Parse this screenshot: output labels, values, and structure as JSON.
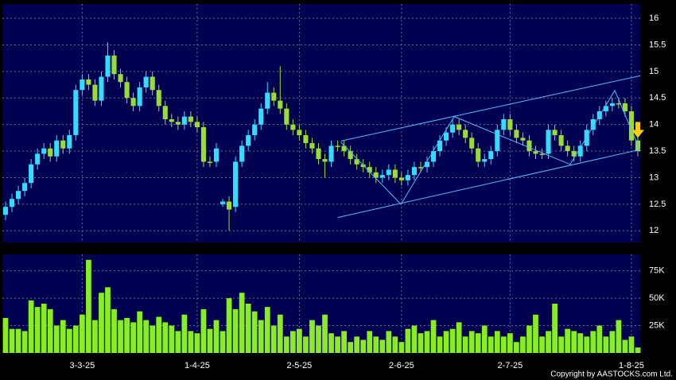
{
  "chart_data": {
    "type": "candlestick",
    "categories": [
      null,
      null,
      null,
      null,
      null,
      null,
      null,
      null,
      null,
      null,
      null,
      null,
      "3-3-25",
      null,
      null,
      null,
      null,
      null,
      null,
      null,
      null,
      null,
      null,
      null,
      null,
      null,
      null,
      null,
      null,
      null,
      "1-4-25",
      null,
      null,
      null,
      null,
      null,
      null,
      null,
      null,
      null,
      null,
      null,
      null,
      null,
      null,
      null,
      "2-5-25",
      null,
      null,
      null,
      null,
      null,
      null,
      null,
      null,
      null,
      null,
      null,
      null,
      null,
      null,
      null,
      "2-6-25",
      null,
      null,
      null,
      null,
      null,
      null,
      null,
      null,
      null,
      null,
      null,
      null,
      null,
      null,
      null,
      null,
      "2-7-25",
      null,
      null,
      null,
      null,
      null,
      null,
      null,
      null,
      null,
      null,
      null,
      null,
      null,
      null,
      null,
      null,
      null,
      null,
      "1-8-25",
      null
    ],
    "open": [
      12.3,
      12.45,
      12.6,
      12.75,
      12.9,
      13.25,
      13.45,
      13.55,
      13.4,
      13.7,
      13.55,
      13.8,
      14.65,
      14.85,
      14.75,
      14.45,
      14.9,
      15.3,
      14.95,
      14.8,
      14.5,
      14.35,
      14.7,
      14.9,
      14.65,
      14.35,
      14.1,
      14.05,
      14.0,
      14.15,
      14.05,
      13.95,
      13.3,
      13.3,
      12.5,
      12.55,
      12.45,
      13.3,
      13.6,
      13.8,
      14.0,
      14.3,
      14.6,
      14.45,
      14.3,
      14.0,
      13.9,
      13.8,
      13.65,
      13.55,
      13.35,
      13.3,
      13.6,
      13.6,
      13.5,
      13.35,
      13.25,
      13.2,
      13.1,
      13.0,
      13.05,
      13.15,
      13.0,
      12.95,
      13.05,
      13.2,
      13.2,
      13.3,
      13.5,
      13.7,
      13.85,
      14.0,
      13.9,
      13.75,
      13.55,
      13.3,
      13.35,
      13.5,
      13.9,
      14.1,
      13.9,
      13.75,
      13.7,
      13.5,
      13.45,
      13.45,
      13.9,
      13.8,
      13.6,
      13.5,
      13.4,
      13.6,
      13.9,
      14.1,
      14.25,
      14.35,
      14.4,
      14.4,
      14.25,
      13.7
    ],
    "high": [
      12.55,
      12.7,
      12.85,
      13.0,
      13.35,
      13.55,
      13.65,
      13.65,
      13.8,
      13.8,
      13.9,
      14.75,
      14.95,
      14.95,
      14.85,
      15.0,
      15.55,
      15.4,
      15.05,
      14.9,
      14.6,
      14.8,
      15.0,
      15.0,
      14.75,
      14.45,
      14.2,
      14.15,
      14.25,
      14.25,
      14.15,
      14.05,
      13.4,
      13.65,
      12.6,
      12.65,
      13.4,
      13.7,
      13.9,
      14.1,
      14.4,
      14.8,
      14.7,
      15.1,
      14.4,
      14.1,
      14.0,
      13.9,
      13.75,
      13.65,
      13.45,
      13.7,
      13.7,
      13.7,
      13.6,
      13.45,
      13.35,
      13.3,
      13.2,
      13.15,
      13.25,
      13.25,
      13.1,
      13.15,
      13.3,
      13.3,
      13.4,
      13.6,
      13.8,
      13.95,
      14.1,
      14.1,
      14.0,
      13.85,
      13.65,
      13.45,
      13.6,
      14.0,
      14.2,
      14.2,
      14.0,
      13.85,
      13.8,
      13.6,
      13.55,
      14.0,
      14.0,
      13.9,
      13.7,
      13.6,
      13.7,
      14.0,
      14.2,
      14.35,
      14.45,
      14.5,
      14.5,
      14.5,
      14.35,
      13.8
    ],
    "low": [
      12.2,
      12.35,
      12.5,
      12.65,
      12.8,
      13.15,
      13.35,
      13.3,
      13.3,
      13.45,
      13.45,
      13.7,
      14.55,
      14.65,
      14.35,
      14.35,
      14.8,
      14.85,
      14.7,
      14.4,
      14.25,
      14.25,
      14.6,
      14.55,
      14.25,
      14.0,
      13.95,
      13.9,
      13.9,
      13.95,
      13.85,
      13.2,
      13.2,
      13.2,
      12.45,
      12.0,
      12.35,
      13.2,
      13.5,
      13.7,
      13.9,
      14.2,
      14.35,
      14.2,
      13.9,
      13.8,
      13.7,
      13.55,
      13.45,
      13.25,
      13.0,
      13.2,
      13.5,
      13.4,
      13.25,
      13.15,
      13.1,
      13.0,
      12.9,
      12.9,
      12.95,
      12.9,
      12.85,
      12.85,
      12.95,
      13.1,
      13.1,
      13.2,
      13.4,
      13.6,
      13.75,
      13.8,
      13.65,
      13.45,
      13.2,
      13.2,
      13.25,
      13.4,
      13.8,
      13.8,
      13.65,
      13.6,
      13.4,
      13.35,
      13.35,
      13.35,
      13.7,
      13.5,
      13.4,
      13.3,
      13.3,
      13.5,
      13.8,
      14.0,
      14.15,
      14.25,
      14.3,
      14.15,
      13.6,
      13.4
    ],
    "close": [
      12.45,
      12.6,
      12.75,
      12.9,
      13.25,
      13.45,
      13.55,
      13.4,
      13.7,
      13.55,
      13.8,
      14.65,
      14.85,
      14.75,
      14.45,
      14.9,
      15.3,
      14.95,
      14.8,
      14.5,
      14.35,
      14.7,
      14.9,
      14.65,
      14.35,
      14.1,
      14.05,
      14.0,
      14.15,
      14.05,
      13.95,
      13.3,
      13.3,
      13.55,
      12.55,
      12.4,
      13.3,
      13.6,
      13.8,
      14.0,
      14.3,
      14.6,
      14.45,
      14.3,
      14.0,
      13.9,
      13.8,
      13.65,
      13.55,
      13.35,
      13.3,
      13.6,
      13.6,
      13.5,
      13.35,
      13.25,
      13.2,
      13.1,
      13.0,
      13.05,
      13.15,
      13.0,
      12.95,
      13.05,
      13.2,
      13.2,
      13.3,
      13.5,
      13.7,
      13.85,
      14.0,
      13.9,
      13.75,
      13.55,
      13.3,
      13.35,
      13.5,
      13.9,
      14.1,
      13.9,
      13.75,
      13.7,
      13.5,
      13.45,
      13.45,
      13.9,
      13.8,
      13.6,
      13.5,
      13.4,
      13.6,
      13.9,
      14.1,
      14.25,
      14.35,
      14.4,
      14.4,
      14.25,
      13.7,
      13.5
    ],
    "up_color": "#33ddff",
    "down_color": "#99dd33",
    "ylim": [
      11.78,
      16.27
    ],
    "yticks": [
      12,
      12.5,
      13,
      13.5,
      14,
      14.5,
      15,
      15.5,
      16
    ],
    "grid": true,
    "trendlines": [
      {
        "x": [
          52.5,
          99.4
        ],
        "y": [
          13.69,
          14.92
        ]
      },
      {
        "x": [
          52,
          99.4
        ],
        "y": [
          12.25,
          13.53
        ]
      }
    ],
    "zigzag": {
      "x": [
        52.5,
        61.9,
        70.25,
        88.4,
        95.4,
        99.4
      ],
      "y": [
        13.67,
        12.5,
        14.15,
        13.25,
        14.64,
        13.5
      ]
    },
    "line_color": "#55bbff",
    "signal": {
      "x": 99,
      "y": 13.75,
      "color": "#ffcc00"
    },
    "volume": {
      "values": [
        32000,
        22000,
        22000,
        20000,
        48000,
        42000,
        45000,
        40000,
        25000,
        30000,
        22000,
        25000,
        35000,
        85000,
        30000,
        55000,
        60000,
        40000,
        30000,
        32000,
        28000,
        38000,
        30000,
        25000,
        33000,
        28000,
        25000,
        20000,
        35000,
        20000,
        18000,
        40000,
        22000,
        30000,
        20000,
        50000,
        40000,
        55000,
        45000,
        38000,
        30000,
        42000,
        25000,
        35000,
        15000,
        20000,
        22000,
        15000,
        30000,
        25000,
        35000,
        18000,
        15000,
        20000,
        10000,
        15000,
        12000,
        20000,
        15000,
        12000,
        20000,
        15000,
        10000,
        22000,
        25000,
        18000,
        20000,
        30000,
        15000,
        20000,
        22000,
        28000,
        15000,
        20000,
        18000,
        25000,
        15000,
        20000,
        15000,
        18000,
        10000,
        15000,
        25000,
        35000,
        15000,
        20000,
        45000,
        15000,
        22000,
        20000,
        18000,
        15000,
        20000,
        25000,
        15000,
        20000,
        30000,
        12000,
        15000,
        5000
      ],
      "color": "#88ee22",
      "ylim": [
        0,
        90000
      ],
      "yticks": [
        {
          "value": 25000,
          "label": "25K"
        },
        {
          "value": 50000,
          "label": "50K"
        },
        {
          "value": 75000,
          "label": "75K"
        }
      ]
    },
    "copyright": "Copyright by AASTOCKS.com Ltd."
  }
}
